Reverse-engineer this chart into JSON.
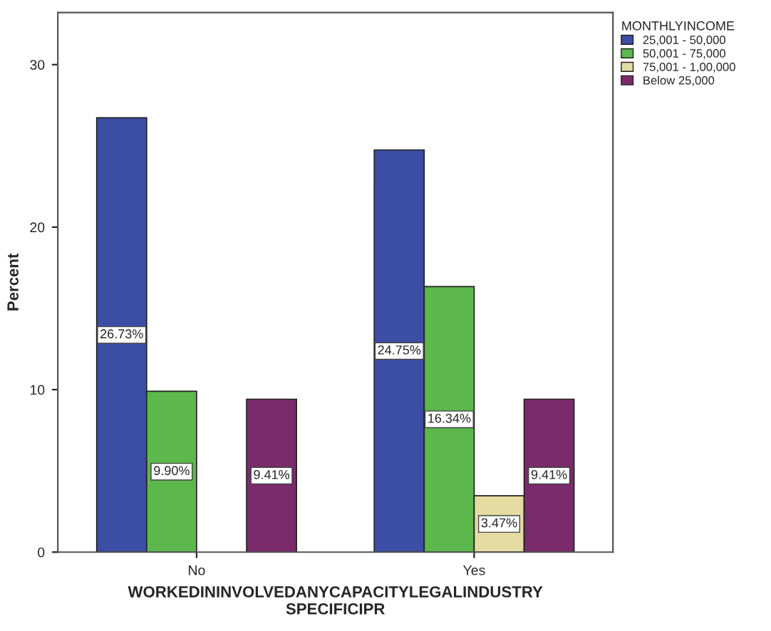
{
  "chart_data": {
    "type": "bar",
    "xlabel": "WORKEDININVOLVEDANYCAPACITYLEGALINDUSTRY\nSPECIFICIPR",
    "ylabel": "Percent",
    "legend_title": "MONTHLYINCOME",
    "categories": [
      "No",
      "Yes"
    ],
    "series": [
      {
        "name": "25,001 - 50,000",
        "color": "#3c4da6",
        "values": [
          26.73,
          24.75
        ],
        "value_labels": [
          "26.73%",
          "24.75%"
        ]
      },
      {
        "name": "50,001 - 75,000",
        "color": "#5cb84c",
        "values": [
          9.9,
          16.34
        ],
        "value_labels": [
          "9.90%",
          "16.34%"
        ]
      },
      {
        "name": "75,001 - 1,00,000",
        "color": "#e2dca2",
        "values": [
          null,
          3.47
        ],
        "value_labels": [
          null,
          "3.47%"
        ]
      },
      {
        "name": "Below 25,000",
        "color": "#7b2a6b",
        "values": [
          9.41,
          9.41
        ],
        "value_labels": [
          "9.41%",
          "9.41%"
        ]
      }
    ],
    "ylim": [
      0,
      33.2
    ],
    "yticks": [
      0,
      10,
      20,
      30
    ],
    "grid": false,
    "legend": "top right"
  }
}
